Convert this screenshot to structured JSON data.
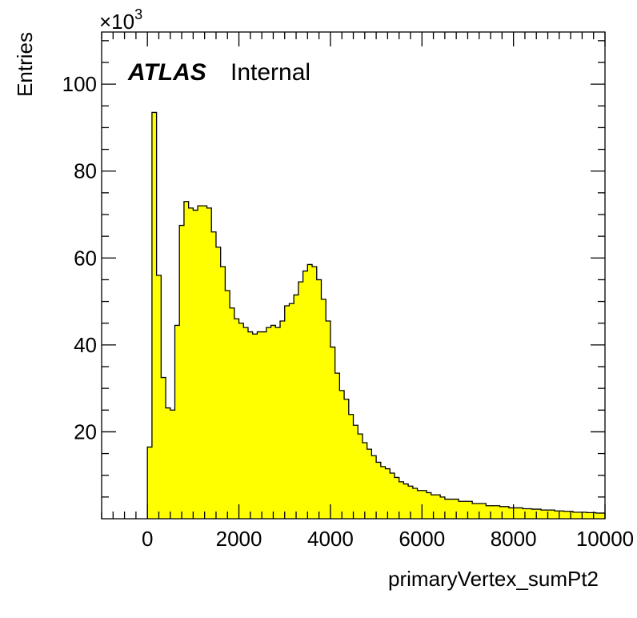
{
  "chart_data": {
    "type": "bar",
    "histogram": true,
    "xlabel": "primaryVertex_sumPt2",
    "ylabel": "Entries",
    "y_multiplier": "×10",
    "y_multiplier_exp": "3",
    "xlim": [
      -1000,
      10000
    ],
    "ylim": [
      0,
      112
    ],
    "x_ticks": [
      0,
      2000,
      4000,
      6000,
      8000,
      10000
    ],
    "y_ticks": [
      20,
      40,
      60,
      80,
      100
    ],
    "x_tick_labels": [
      "0",
      "2000",
      "4000",
      "6000",
      "8000",
      "10000"
    ],
    "y_tick_labels": [
      "20",
      "40",
      "60",
      "80",
      "100"
    ],
    "bin_width": 100,
    "bin_start": 0,
    "values": [
      16.5,
      93.5,
      56,
      32.5,
      25.5,
      25,
      44.5,
      67.5,
      73,
      71.5,
      71,
      72,
      72,
      71.5,
      66,
      62.5,
      58,
      52.5,
      48.5,
      46,
      45,
      44,
      43,
      42.5,
      43,
      43,
      44,
      44.5,
      44,
      45.5,
      49,
      49.5,
      51.5,
      54.5,
      57,
      58.5,
      58,
      55,
      50.5,
      45.5,
      39.5,
      33.5,
      29.5,
      27.5,
      24,
      21.5,
      19.5,
      17.5,
      16,
      14.5,
      13,
      12,
      11.5,
      10.5,
      9.5,
      8.5,
      8,
      7.5,
      7,
      6.5,
      6.5,
      6,
      5.5,
      5.5,
      5,
      4.5,
      4.5,
      4.5,
      4,
      4,
      4,
      3.5,
      3.5,
      3.5,
      3,
      3,
      3,
      2.8,
      2.8,
      2.5,
      2.5,
      2.5,
      2.3,
      2.3,
      2.2,
      2.2,
      2,
      2,
      2,
      1.8,
      1.8,
      1.7,
      1.7,
      1.5,
      1.5,
      1.5,
      1.4,
      1.4,
      1.3,
      1.3
    ],
    "fill_color": "#ffff00",
    "line_color": "#000000",
    "legend": "none",
    "grid": false
  },
  "labels": {
    "atlas": "ATLAS",
    "internal": "Internal"
  }
}
